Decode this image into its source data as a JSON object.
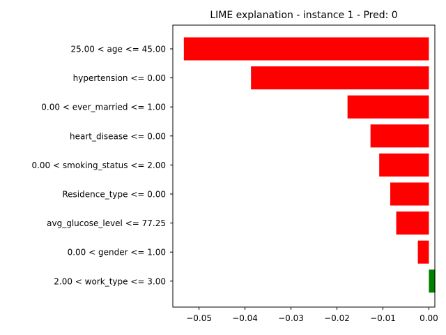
{
  "chart_data": {
    "type": "bar",
    "orientation": "horizontal",
    "title": "LIME explanation - instance 1 - Pred: 0",
    "xlabel": "",
    "ylabel": "",
    "xlim": [
      -0.0557,
      0.0013
    ],
    "grid": false,
    "legend": "none",
    "positive_color": "#008000",
    "negative_color": "#ff0000",
    "categories": [
      "25.00 < age <= 45.00",
      "hypertension <= 0.00",
      "0.00 < ever_married <= 1.00",
      "heart_disease <= 0.00",
      "0.00 < smoking_status <= 2.00",
      "Residence_type <= 0.00",
      "avg_glucose_level <= 77.25",
      "0.00 < gender <= 1.00",
      "2.00 < work_type <= 3.00"
    ],
    "values": [
      -0.0533,
      -0.0387,
      -0.0177,
      -0.0127,
      -0.0108,
      -0.0084,
      -0.0071,
      -0.0024,
      0.0014
    ],
    "x_ticks": [
      -0.05,
      -0.04,
      -0.03,
      -0.02,
      -0.01,
      0.0
    ],
    "x_tick_labels": [
      "−0.05",
      "−0.04",
      "−0.03",
      "−0.02",
      "−0.01",
      "0.00"
    ]
  }
}
